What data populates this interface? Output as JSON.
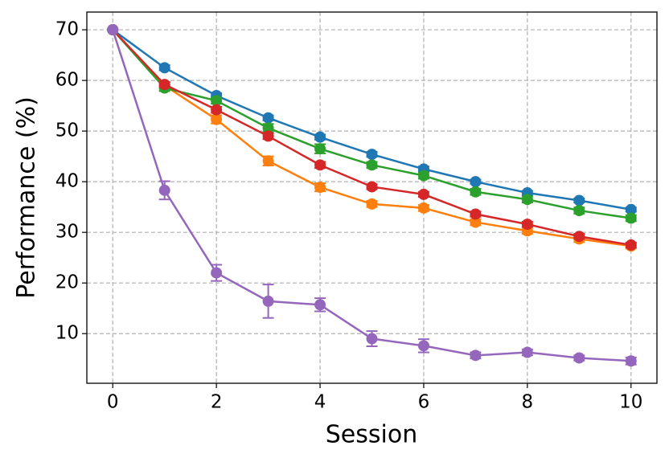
{
  "chart_data": {
    "type": "line",
    "xlabel": "Session",
    "ylabel": "Performance (%)",
    "x": [
      0,
      1,
      2,
      3,
      4,
      5,
      6,
      7,
      8,
      9,
      10
    ],
    "series": [
      {
        "color": "#1f77b4",
        "values": [
          70,
          62.5,
          57,
          52.6,
          48.8,
          45.4,
          42.5,
          40,
          37.8,
          36.3,
          34.5
        ],
        "errors": [
          0,
          0.5,
          0.5,
          0.5,
          0.5,
          0.5,
          0.5,
          0.4,
          0.4,
          0.4,
          0.4
        ]
      },
      {
        "color": "#ff7f0e",
        "values": [
          70,
          59,
          52.3,
          44.1,
          38.9,
          35.6,
          34.8,
          32,
          30.3,
          28.7,
          27.3
        ],
        "errors": [
          0,
          0.6,
          0.8,
          0.9,
          0.8,
          0.6,
          0.6,
          0.6,
          0.6,
          0.6,
          0.5
        ]
      },
      {
        "color": "#2ca02c",
        "values": [
          70,
          58.5,
          56,
          50.6,
          46.5,
          43.3,
          41.2,
          38,
          36.5,
          34.3,
          32.8
        ],
        "errors": [
          0,
          0.6,
          0.6,
          0.8,
          0.9,
          0.6,
          0.6,
          0.6,
          0.6,
          0.6,
          0.6
        ]
      },
      {
        "color": "#d62728",
        "values": [
          70,
          59.2,
          54.2,
          49,
          43.3,
          39,
          37.5,
          33.6,
          31.6,
          29.2,
          27.5
        ],
        "errors": [
          0,
          0.5,
          0.6,
          0.6,
          0.6,
          0.5,
          0.5,
          0.5,
          0.5,
          0.5,
          0.5
        ]
      },
      {
        "color": "#9467bd",
        "values": [
          70,
          38.3,
          22,
          16.4,
          15.7,
          9,
          7.6,
          5.7,
          6.3,
          5.2,
          4.6
        ],
        "errors": [
          0,
          1.8,
          1.6,
          3.3,
          1.3,
          1.5,
          1.3,
          0.6,
          0.6,
          0.5,
          0.7
        ]
      }
    ],
    "xlim": [
      -0.5,
      10.5
    ],
    "xticks": [
      0,
      2,
      4,
      6,
      8,
      10
    ],
    "ylim": [
      0.2,
      73.5
    ],
    "yticks": [
      10,
      20,
      30,
      40,
      50,
      60,
      70
    ],
    "grid": true
  }
}
